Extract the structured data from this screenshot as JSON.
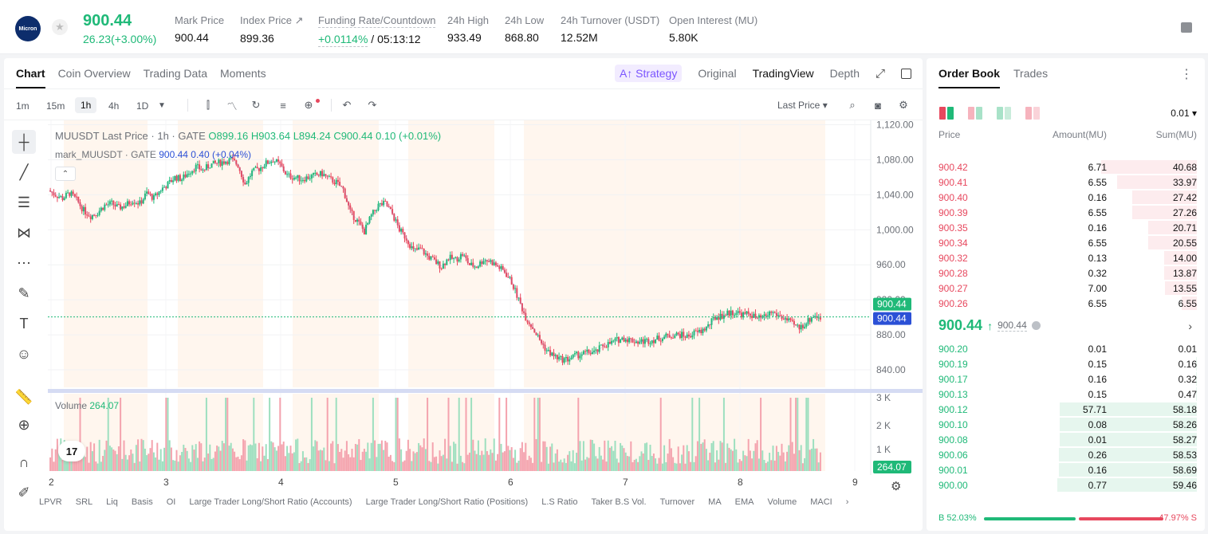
{
  "header": {
    "logo_text": "Micron",
    "last_price": "900.44",
    "change": "26.23(+3.00%)",
    "stats": [
      {
        "label": "Mark Price",
        "value": "900.44"
      },
      {
        "label": "Index Price ↗",
        "value": "899.36"
      },
      {
        "label": "Funding Rate/Countdown",
        "value_green": "+0.0114%",
        "value_rest": " / 05:13:12"
      },
      {
        "label": "24h High",
        "value": "933.49"
      },
      {
        "label": "24h Low",
        "value": "868.80"
      },
      {
        "label": "24h Turnover (USDT)",
        "value": "12.52M"
      },
      {
        "label": "Open Interest (MU)",
        "value": "5.80K"
      }
    ]
  },
  "chart_panel": {
    "tabs": [
      "Chart",
      "Coin Overview",
      "Trading Data",
      "Moments"
    ],
    "strategy_label": "A↑ Strategy",
    "view_tabs": [
      "Original",
      "TradingView",
      "Depth"
    ],
    "intervals": [
      "1m",
      "15m",
      "1h",
      "4h",
      "1D"
    ],
    "price_type": "Last Price",
    "legend_main": {
      "name": "MUUSDT Last Price · 1h · GATE",
      "o": "O899.16",
      "h": "H903.64",
      "l": "L894.24",
      "c": "C900.44",
      "chg": "0.10 (+0.01%)"
    },
    "legend_mark": {
      "name": "mark_MUUSDT · GATE",
      "value": "900.44 0.40 (+0.04%)"
    },
    "volume_label": "Volume",
    "volume_value": "264.07",
    "indicators": [
      "LPVR",
      "SRL",
      "Liq",
      "Basis",
      "OI",
      "Large Trader Long/Short Ratio (Accounts)",
      "Large Trader Long/Short Ratio (Positions)",
      "L.S Ratio",
      "Taker B.S Vol.",
      "Turnover",
      "MA",
      "EMA",
      "Volume",
      "MACI"
    ],
    "tv_logo": "17"
  },
  "chart_data": {
    "type": "candlestick",
    "title": "MUUSDT Last Price · 1h · GATE",
    "price_axis_ticks": [
      "1,120.00",
      "1,080.00",
      "1,040.00",
      "1,000.00",
      "960.00",
      "920.00",
      "880.00",
      "840.00"
    ],
    "price_labels": [
      "900.44",
      "900.44"
    ],
    "volume_axis_ticks": [
      "3 K",
      "2 K",
      "1 K"
    ],
    "volume_label": "264.07",
    "x_ticks": [
      "2",
      "3",
      "4",
      "5",
      "6",
      "7",
      "8",
      "9"
    ],
    "ylim": [
      820,
      1125
    ],
    "price_path": [
      1045,
      1040,
      1036,
      1042,
      1034,
      1022,
      1016,
      1020,
      1028,
      1030,
      1025,
      1028,
      1034,
      1030,
      1042,
      1036,
      1046,
      1052,
      1060,
      1058,
      1066,
      1072,
      1068,
      1074,
      1076,
      1078,
      1080,
      1074,
      1052,
      1066,
      1070,
      1076,
      1080,
      1074,
      1062,
      1060,
      1058,
      1060,
      1062,
      1064,
      1058,
      1054,
      1046,
      1020,
      1010,
      998,
      1016,
      1028,
      1030,
      1018,
      1000,
      990,
      976,
      978,
      970,
      964,
      958,
      968,
      966,
      972,
      960,
      958,
      966,
      964,
      958,
      952,
      940,
      920,
      900,
      888,
      874,
      862,
      856,
      852,
      852,
      856,
      858,
      860,
      860,
      868,
      870,
      874,
      876,
      874,
      872,
      873,
      874,
      876,
      878,
      880,
      880,
      878,
      882,
      884,
      890,
      900,
      902,
      905,
      906,
      903,
      904,
      898,
      900,
      906,
      902,
      898,
      892,
      888,
      894,
      902,
      900
    ]
  },
  "order_book": {
    "tabs": [
      "Order Book",
      "Trades"
    ],
    "precision": "0.01",
    "headers": {
      "price": "Price",
      "amount": "Amount(MU)",
      "sum": "Sum(MU)"
    },
    "asks": [
      {
        "price": "900.42",
        "amount": "6.71",
        "sum": "40.68",
        "depth": 0.686
      },
      {
        "price": "900.41",
        "amount": "6.55",
        "sum": "33.97",
        "depth": 0.573
      },
      {
        "price": "900.40",
        "amount": "0.16",
        "sum": "27.42",
        "depth": 0.462
      },
      {
        "price": "900.39",
        "amount": "6.55",
        "sum": "27.26",
        "depth": 0.46
      },
      {
        "price": "900.35",
        "amount": "0.16",
        "sum": "20.71",
        "depth": 0.349
      },
      {
        "price": "900.34",
        "amount": "6.55",
        "sum": "20.55",
        "depth": 0.347
      },
      {
        "price": "900.32",
        "amount": "0.13",
        "sum": "14.00",
        "depth": 0.236
      },
      {
        "price": "900.28",
        "amount": "0.32",
        "sum": "13.87",
        "depth": 0.234
      },
      {
        "price": "900.27",
        "amount": "7.00",
        "sum": "13.55",
        "depth": 0.228
      },
      {
        "price": "900.26",
        "amount": "6.55",
        "sum": "6.55",
        "depth": 0.11
      }
    ],
    "mid_price": "900.44",
    "mid_arrow": "↑",
    "mark_price": "900.44",
    "bids": [
      {
        "price": "900.20",
        "amount": "0.01",
        "sum": "0.01",
        "depth": 0.002
      },
      {
        "price": "900.19",
        "amount": "0.15",
        "sum": "0.16",
        "depth": 0.003
      },
      {
        "price": "900.17",
        "amount": "0.16",
        "sum": "0.32",
        "depth": 0.005
      },
      {
        "price": "900.13",
        "amount": "0.15",
        "sum": "0.47",
        "depth": 0.008
      },
      {
        "price": "900.12",
        "amount": "57.71",
        "sum": "58.18",
        "depth": 0.981
      },
      {
        "price": "900.10",
        "amount": "0.08",
        "sum": "58.26",
        "depth": 0.982
      },
      {
        "price": "900.08",
        "amount": "0.01",
        "sum": "58.27",
        "depth": 0.983
      },
      {
        "price": "900.06",
        "amount": "0.26",
        "sum": "58.53",
        "depth": 0.987
      },
      {
        "price": "900.01",
        "amount": "0.16",
        "sum": "58.69",
        "depth": 0.99
      },
      {
        "price": "900.00",
        "amount": "0.77",
        "sum": "59.46",
        "depth": 1.0
      }
    ],
    "ratio_buy": "B 52.03%",
    "ratio_sell": "47.97% S",
    "ratio_buy_fraction": 0.5203
  },
  "colors": {
    "up": "#1fb978",
    "down": "#e7485e",
    "mark": "#2b50d6"
  }
}
